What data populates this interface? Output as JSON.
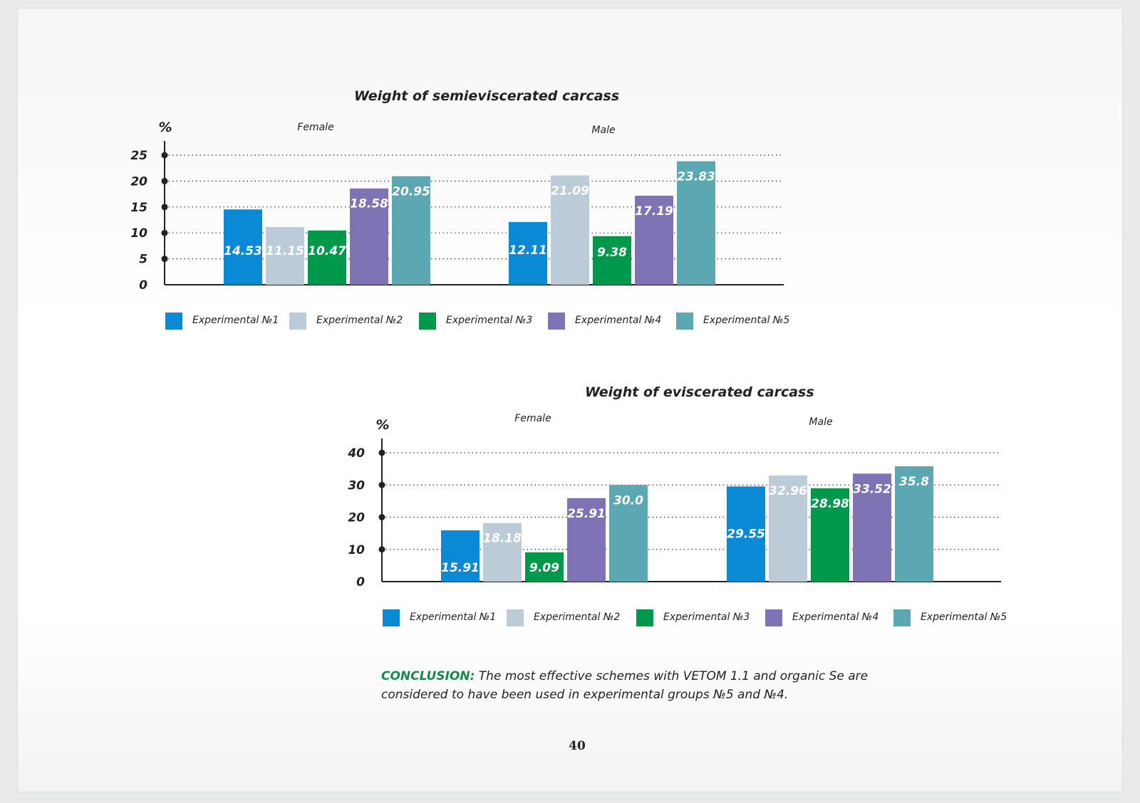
{
  "page": {
    "conclusion_label": "CONCLUSION:",
    "conclusion_text": " The most effective schemes with VETOM 1.1 and organic Se are considered to have been used in experimental groups №5 and №4.",
    "page_number": "40"
  },
  "colors": [
    "#0a8ad4",
    "#bccbd8",
    "#00984a",
    "#7f72b5",
    "#5ba8b2"
  ],
  "chart_data": [
    {
      "type": "bar",
      "title": "Weight of semieviscerated carcass",
      "ylabel": "%",
      "ylim": [
        0,
        25
      ],
      "yticks": [
        0,
        5,
        10,
        15,
        20,
        25
      ],
      "grid": true,
      "legend_position": "bottom",
      "categories": [
        "Female",
        "Male"
      ],
      "series": [
        {
          "name": "Experimental №1",
          "values": [
            14.53,
            12.11
          ]
        },
        {
          "name": "Experimental №2",
          "values": [
            11.15,
            21.09
          ]
        },
        {
          "name": "Experimental №3",
          "values": [
            10.47,
            9.38
          ]
        },
        {
          "name": "Experimental №4",
          "values": [
            18.58,
            17.19
          ]
        },
        {
          "name": "Experimental №5",
          "values": [
            20.95,
            23.83
          ]
        }
      ]
    },
    {
      "type": "bar",
      "title": "Weight of eviscerated carcass",
      "ylabel": "%",
      "ylim": [
        0,
        40
      ],
      "yticks": [
        0,
        10,
        20,
        30,
        40
      ],
      "grid": true,
      "legend_position": "bottom",
      "categories": [
        "Female",
        "Male"
      ],
      "series": [
        {
          "name": "Experimental №1",
          "values": [
            15.91,
            29.55
          ]
        },
        {
          "name": "Experimental №2",
          "values": [
            18.18,
            32.96
          ]
        },
        {
          "name": "Experimental №3",
          "values": [
            9.09,
            28.98
          ]
        },
        {
          "name": "Experimental №4",
          "values": [
            25.91,
            33.52
          ]
        },
        {
          "name": "Experimental №5",
          "values": [
            "30.0",
            "35.8"
          ]
        }
      ]
    }
  ]
}
